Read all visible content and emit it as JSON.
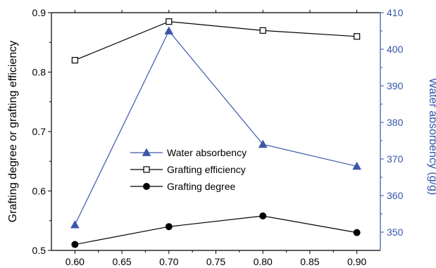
{
  "chart_data": {
    "type": "line",
    "x": [
      0.6,
      0.7,
      0.8,
      0.9
    ],
    "xlim": [
      0.575,
      0.925
    ],
    "xticks": [
      "0.60",
      "0.65",
      "0.70",
      "0.75",
      "0.80",
      "0.85",
      "0.90"
    ],
    "ylabel_left": "Grafting degree or grafting efficiency",
    "ylim_left": [
      0.5,
      0.9
    ],
    "yticks_left": [
      "0.5",
      "0.6",
      "0.7",
      "0.8",
      "0.9"
    ],
    "ylabel_right": "Water absorbency (g/g)",
    "ylim_right": [
      345,
      410
    ],
    "yticks_right": [
      "350",
      "360",
      "370",
      "380",
      "390",
      "400",
      "410"
    ],
    "grid": false,
    "legend_position": "center-left",
    "series": [
      {
        "name": "Water absorbency",
        "axis": "right",
        "marker": "filled-triangle",
        "color": "#3d57a6",
        "values": [
          352,
          405,
          374,
          368
        ]
      },
      {
        "name": "Grafting efficiency",
        "axis": "left",
        "marker": "open-square",
        "color": "#000000",
        "values": [
          0.82,
          0.885,
          0.87,
          0.86
        ]
      },
      {
        "name": "Grafting degree",
        "axis": "left",
        "marker": "filled-circle",
        "color": "#000000",
        "values": [
          0.51,
          0.54,
          0.558,
          0.53
        ]
      }
    ]
  },
  "colors": {
    "right_axis": "#3355aa",
    "axis": "#000000"
  }
}
